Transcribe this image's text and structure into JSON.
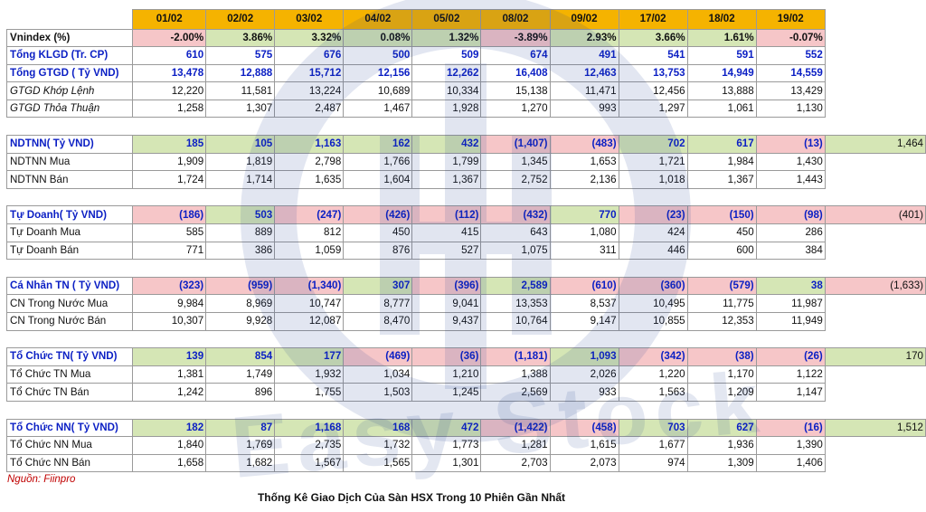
{
  "dates": [
    "01/02",
    "02/02",
    "03/02",
    "04/02",
    "05/02",
    "08/02",
    "09/02",
    "17/02",
    "18/02",
    "19/02"
  ],
  "rows": [
    {
      "label": "Vnindex (%)",
      "values": [
        "-2.00%",
        "3.86%",
        "3.32%",
        "0.08%",
        "1.32%",
        "-3.89%",
        "2.93%",
        "3.66%",
        "1.61%",
        "-0.07%"
      ],
      "total": null,
      "style": "bold-black",
      "colored": true
    },
    {
      "label": "Tổng KLGD (Tr. CP)",
      "values": [
        "610",
        "575",
        "676",
        "500",
        "509",
        "674",
        "491",
        "541",
        "591",
        "552"
      ],
      "total": null,
      "style": "bold-blue",
      "colored": false
    },
    {
      "label": "Tổng GTGD ( Tỷ VND)",
      "values": [
        "13,478",
        "12,888",
        "15,712",
        "12,156",
        "12,262",
        "16,408",
        "12,463",
        "13,753",
        "14,949",
        "14,559"
      ],
      "total": null,
      "style": "bold-blue",
      "colored": false
    },
    {
      "label": "GTGD Khớp Lệnh",
      "values": [
        "12,220",
        "11,581",
        "13,224",
        "10,689",
        "10,334",
        "15,138",
        "11,471",
        "12,456",
        "13,888",
        "13,429"
      ],
      "total": null,
      "style": "italic-label",
      "colored": false
    },
    {
      "label": "GTGD Thỏa Thuận",
      "values": [
        "1,258",
        "1,307",
        "2,487",
        "1,467",
        "1,928",
        "1,270",
        "993",
        "1,297",
        "1,061",
        "1,130"
      ],
      "total": null,
      "style": "italic-label",
      "colored": false
    },
    {
      "gap": true
    },
    {
      "label": "NDTNN( Tỷ VND)",
      "values": [
        "185",
        "105",
        "1,163",
        "162",
        "432",
        "(1,407)",
        "(483)",
        "702",
        "617",
        "(13)"
      ],
      "total": "1,464",
      "style": "bold-blue",
      "colored": true
    },
    {
      "label": "NDTNN Mua",
      "values": [
        "1,909",
        "1,819",
        "2,798",
        "1,766",
        "1,799",
        "1,345",
        "1,653",
        "1,721",
        "1,984",
        "1,430"
      ],
      "total": null,
      "style": "normal",
      "colored": false
    },
    {
      "label": "NDTNN Bán",
      "values": [
        "1,724",
        "1,714",
        "1,635",
        "1,604",
        "1,367",
        "2,752",
        "2,136",
        "1,018",
        "1,367",
        "1,443"
      ],
      "total": null,
      "style": "normal",
      "colored": false
    },
    {
      "gap": true
    },
    {
      "label": "Tự Doanh( Tỷ VND)",
      "values": [
        "(186)",
        "503",
        "(247)",
        "(426)",
        "(112)",
        "(432)",
        "770",
        "(23)",
        "(150)",
        "(98)"
      ],
      "total": "(401)",
      "style": "bold-blue",
      "colored": true
    },
    {
      "label": "Tự Doanh Mua",
      "values": [
        "585",
        "889",
        "812",
        "450",
        "415",
        "643",
        "1,080",
        "424",
        "450",
        "286"
      ],
      "total": null,
      "style": "normal",
      "colored": false
    },
    {
      "label": "Tự Doanh Bán",
      "values": [
        "771",
        "386",
        "1,059",
        "876",
        "527",
        "1,075",
        "311",
        "446",
        "600",
        "384"
      ],
      "total": null,
      "style": "normal",
      "colored": false
    },
    {
      "gap": true
    },
    {
      "label": "Cá Nhân TN ( Tỷ VND)",
      "values": [
        "(323)",
        "(959)",
        "(1,340)",
        "307",
        "(396)",
        "2,589",
        "(610)",
        "(360)",
        "(579)",
        "38"
      ],
      "total": "(1,633)",
      "style": "bold-blue",
      "colored": true
    },
    {
      "label": "CN Trong Nước Mua",
      "values": [
        "9,984",
        "8,969",
        "10,747",
        "8,777",
        "9,041",
        "13,353",
        "8,537",
        "10,495",
        "11,775",
        "11,987"
      ],
      "total": null,
      "style": "normal",
      "colored": false
    },
    {
      "label": "CN Trong Nước Bán",
      "values": [
        "10,307",
        "9,928",
        "12,087",
        "8,470",
        "9,437",
        "10,764",
        "9,147",
        "10,855",
        "12,353",
        "11,949"
      ],
      "total": null,
      "style": "normal",
      "colored": false
    },
    {
      "gap": true
    },
    {
      "label": "Tổ Chức TN( Tỷ VND)",
      "values": [
        "139",
        "854",
        "177",
        "(469)",
        "(36)",
        "(1,181)",
        "1,093",
        "(342)",
        "(38)",
        "(26)"
      ],
      "total": "170",
      "style": "bold-blue",
      "colored": true
    },
    {
      "label": "Tổ Chức TN Mua",
      "values": [
        "1,381",
        "1,749",
        "1,932",
        "1,034",
        "1,210",
        "1,388",
        "2,026",
        "1,220",
        "1,170",
        "1,122"
      ],
      "total": null,
      "style": "normal",
      "colored": false
    },
    {
      "label": "Tổ Chức TN Bán",
      "values": [
        "1,242",
        "896",
        "1,755",
        "1,503",
        "1,245",
        "2,569",
        "933",
        "1,563",
        "1,209",
        "1,147"
      ],
      "total": null,
      "style": "normal",
      "colored": false
    },
    {
      "gap": true
    },
    {
      "label": "Tổ Chức NN( Tỷ VND)",
      "values": [
        "182",
        "87",
        "1,168",
        "168",
        "472",
        "(1,422)",
        "(458)",
        "703",
        "627",
        "(16)"
      ],
      "total": "1,512",
      "style": "bold-blue",
      "colored": true
    },
    {
      "label": "Tổ Chức NN Mua",
      "values": [
        "1,840",
        "1,769",
        "2,735",
        "1,732",
        "1,773",
        "1,281",
        "1,615",
        "1,677",
        "1,936",
        "1,390"
      ],
      "total": null,
      "style": "normal",
      "colored": false
    },
    {
      "label": "Tổ Chức NN Bán",
      "values": [
        "1,658",
        "1,682",
        "1,567",
        "1,565",
        "1,301",
        "2,703",
        "2,073",
        "974",
        "1,309",
        "1,406"
      ],
      "total": null,
      "style": "normal",
      "colored": false
    }
  ],
  "source": "Nguồn: Fiinpro",
  "caption": "Thống Kê Giao Dịch Của Sàn HSX Trong 10 Phiên Gần Nhất",
  "watermark": "Easy Stock",
  "colors": {
    "header": "#f5b300",
    "positive": "#d5e6b5",
    "negative": "#f6c6c8",
    "blue_text": "#0b1fc4",
    "source_text": "#c00000"
  }
}
